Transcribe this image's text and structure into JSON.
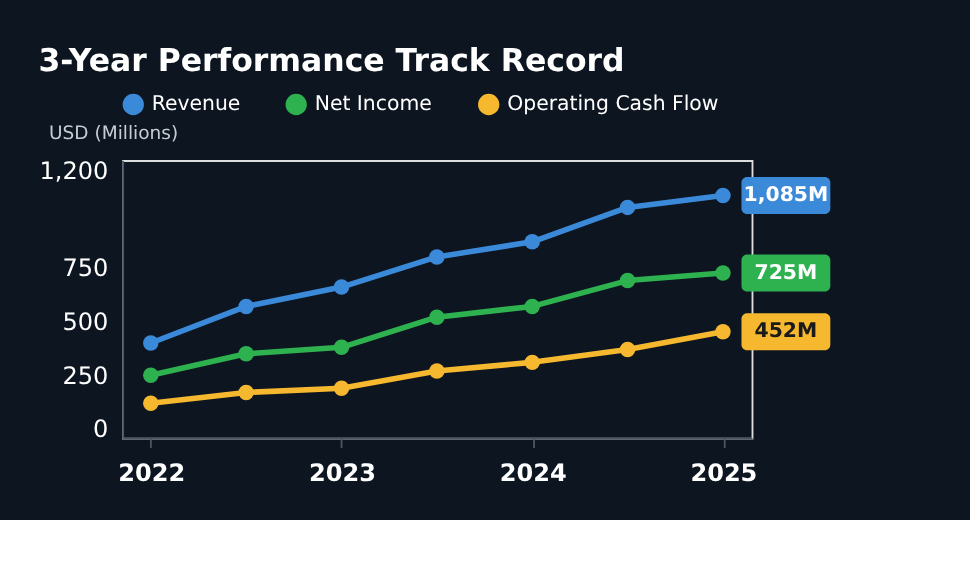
{
  "chart_data": {
    "type": "line",
    "title": "3-Year Performance Track Record",
    "ylabel": "USD (Millions)",
    "x": [
      2022,
      2022.5,
      2023,
      2023.5,
      2024,
      2024.5,
      2025
    ],
    "series": [
      {
        "name": "Revenue",
        "color": "#3b8ad9",
        "values": [
          400,
          570,
          660,
          800,
          870,
          1030,
          1085
        ],
        "value_labels": [
          null,
          null,
          null,
          null,
          null,
          null,
          "1,085M"
        ]
      },
      {
        "name": "Net Income",
        "color": "#2eb24f",
        "values": [
          250,
          350,
          380,
          520,
          570,
          690,
          725
        ],
        "value_labels": [
          null,
          null,
          null,
          null,
          null,
          null,
          "725M"
        ]
      },
      {
        "name": "Operating Cash Flow",
        "color": "#f5b82e",
        "values": [
          120,
          170,
          190,
          270,
          310,
          370,
          452
        ],
        "value_labels": [
          null,
          null,
          null,
          null,
          null,
          null,
          "452M"
        ]
      }
    ],
    "xlim": [
      2021.85,
      2025.15
    ],
    "xticks": [
      2022,
      2023,
      2024,
      2025
    ],
    "ylim": [
      -40,
      1250
    ],
    "yticks": [
      0,
      250,
      500,
      750,
      {
        "value": 1200,
        "label": "1,200"
      }
    ],
    "grid": false,
    "legend": "top",
    "marker": "circle",
    "line_style": "solid"
  }
}
